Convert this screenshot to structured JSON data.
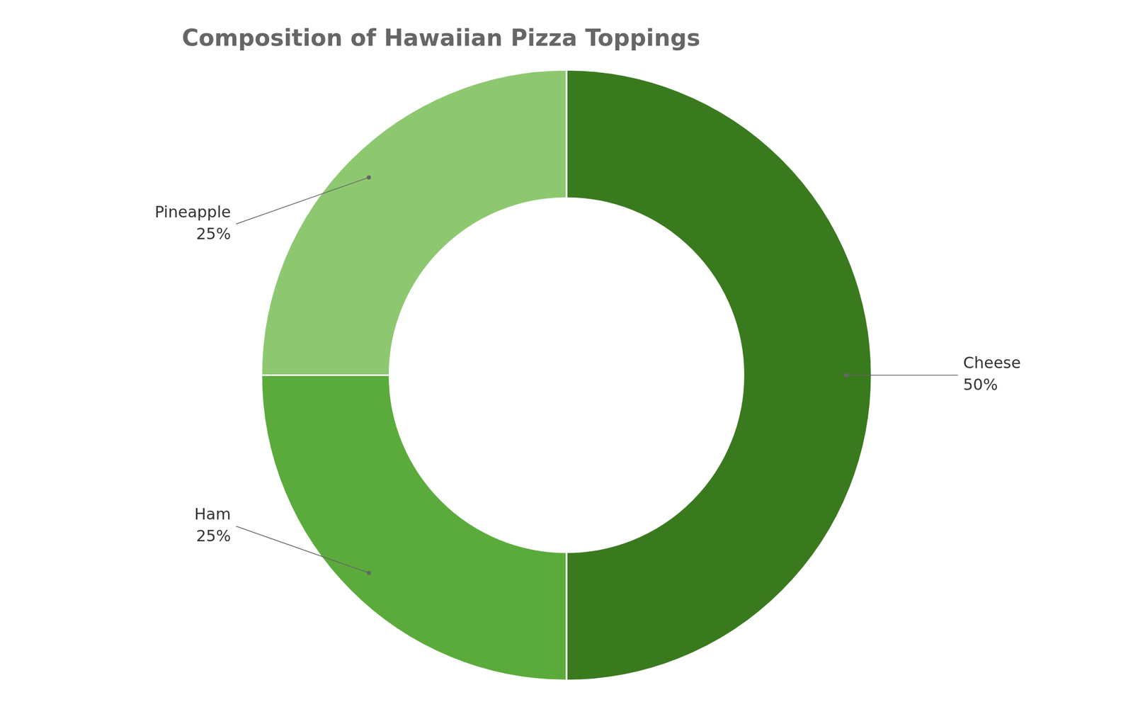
{
  "chart_data": {
    "type": "doughnut",
    "title": "Composition of Hawaiian Pizza Toppings",
    "categories": [
      "Cheese",
      "Ham",
      "Pineapple"
    ],
    "values": [
      50,
      25,
      25
    ],
    "value_labels": [
      "50%",
      "25%",
      "25%"
    ],
    "colors": [
      "#3a7a1e",
      "#5aab3c",
      "#8dc870"
    ],
    "data_labels": true,
    "legend": false
  }
}
